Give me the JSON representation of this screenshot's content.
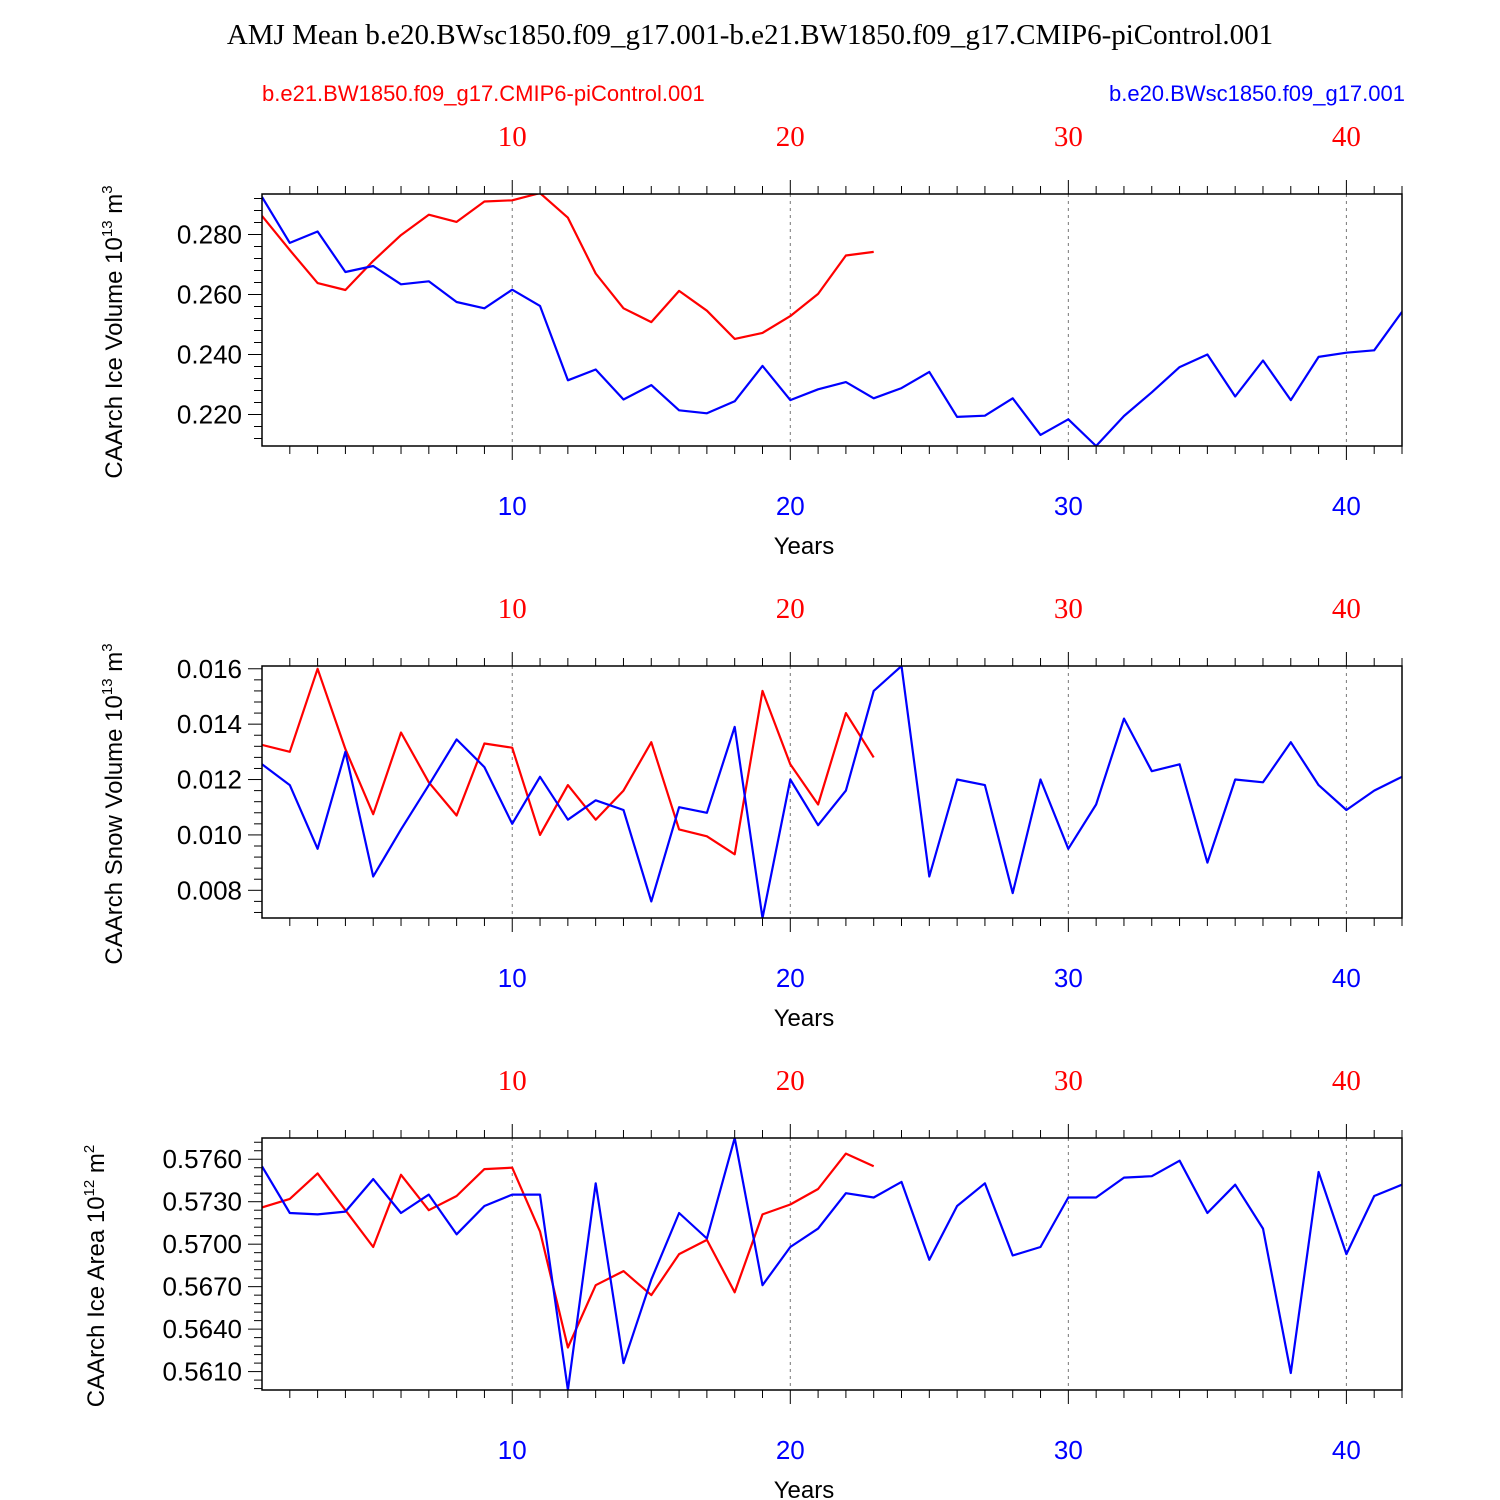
{
  "title": "AMJ Mean b.e20.BWsc1850.f09_g17.001-b.e21.BW1850.f09_g17.CMIP6-piControl.001",
  "legend": {
    "red_label": "b.e21.BW1850.f09_g17.CMIP6-piControl.001",
    "blue_label": "b.e20.BWsc1850.f09_g17.001"
  },
  "colors": {
    "red": "#ff0000",
    "blue": "#0000ff"
  },
  "chart_data": [
    {
      "type": "line",
      "ylabel": "CAArch Ice Volume 10",
      "ylabel_exp": "13",
      "ylabel_unit": " m",
      "ylabel_unit_exp": "3",
      "xlabel": "Years",
      "xlim": [
        1,
        42
      ],
      "ylim": [
        0.2095,
        0.2935
      ],
      "xticks": [
        10,
        20,
        30,
        40
      ],
      "xtick_labels": [
        "10",
        "20",
        "30",
        "40"
      ],
      "yticks": [
        0.22,
        0.24,
        0.26,
        0.28
      ],
      "ytick_labels": [
        "0.220",
        "0.240",
        "0.260",
        "0.280"
      ],
      "series": [
        {
          "name": "b.e21.BW1850.f09_g17.CMIP6-piControl.001",
          "color": "red",
          "values": [
            0.2862,
            0.2748,
            0.2638,
            0.2615,
            0.2712,
            0.2798,
            0.2866,
            0.2842,
            0.291,
            0.2914,
            0.2938,
            0.2856,
            0.267,
            0.2554,
            0.2508,
            0.2612,
            0.2546,
            0.2452,
            0.2472,
            0.2528,
            0.2602,
            0.273,
            0.2742
          ]
        },
        {
          "name": "b.e20.BWsc1850.f09_g17.001",
          "color": "blue",
          "values": [
            0.2925,
            0.2772,
            0.281,
            0.2675,
            0.2695,
            0.2634,
            0.2644,
            0.2575,
            0.2554,
            0.2616,
            0.2562,
            0.2314,
            0.235,
            0.225,
            0.2298,
            0.2214,
            0.2204,
            0.2244,
            0.2362,
            0.2248,
            0.2284,
            0.2308,
            0.2254,
            0.2288,
            0.2342,
            0.2192,
            0.2196,
            0.2254,
            0.2132,
            0.2184,
            0.2095,
            0.2195,
            0.2274,
            0.2358,
            0.24,
            0.226,
            0.238,
            0.2248,
            0.2392,
            0.2406,
            0.2414,
            0.2542
          ]
        }
      ]
    },
    {
      "type": "line",
      "ylabel": "CAArch Snow Volume 10",
      "ylabel_exp": "13",
      "ylabel_unit": " m",
      "ylabel_unit_exp": "3",
      "xlabel": "Years",
      "xlim": [
        1,
        42
      ],
      "ylim": [
        0.007,
        0.0161
      ],
      "xticks": [
        10,
        20,
        30,
        40
      ],
      "xtick_labels": [
        "10",
        "20",
        "30",
        "40"
      ],
      "yticks": [
        0.008,
        0.01,
        0.012,
        0.014,
        0.016
      ],
      "ytick_labels": [
        "0.008",
        "0.010",
        "0.012",
        "0.014",
        "0.016"
      ],
      "series": [
        {
          "name": "b.e21.BW1850.f09_g17.CMIP6-piControl.001",
          "color": "red",
          "values": [
            0.01325,
            0.013,
            0.016,
            0.0131,
            0.01075,
            0.0137,
            0.0119,
            0.0107,
            0.0133,
            0.01315,
            0.01,
            0.0118,
            0.01055,
            0.0116,
            0.01335,
            0.0102,
            0.00995,
            0.0093,
            0.0152,
            0.01255,
            0.0111,
            0.0144,
            0.0128
          ]
        },
        {
          "name": "b.e20.BWsc1850.f09_g17.001",
          "color": "blue",
          "values": [
            0.01255,
            0.0118,
            0.0095,
            0.013,
            0.0085,
            0.0102,
            0.0118,
            0.01345,
            0.01245,
            0.0104,
            0.0121,
            0.01055,
            0.01125,
            0.0109,
            0.0076,
            0.011,
            0.0108,
            0.0139,
            0.007,
            0.012,
            0.01035,
            0.0116,
            0.0152,
            0.0161,
            0.0085,
            0.012,
            0.0118,
            0.0079,
            0.012,
            0.0095,
            0.0111,
            0.0142,
            0.0123,
            0.01255,
            0.009,
            0.012,
            0.0119,
            0.01335,
            0.0118,
            0.0109,
            0.0116,
            0.0121
          ]
        }
      ]
    },
    {
      "type": "line",
      "ylabel": "CAArch Ice Area 10",
      "ylabel_exp": "12",
      "ylabel_unit": " m",
      "ylabel_unit_exp": "2",
      "xlabel": "Years",
      "xlim": [
        1,
        42
      ],
      "ylim": [
        0.5597,
        0.5775
      ],
      "xticks": [
        10,
        20,
        30,
        40
      ],
      "xtick_labels": [
        "10",
        "20",
        "30",
        "40"
      ],
      "yticks": [
        0.561,
        0.564,
        0.567,
        0.57,
        0.573,
        0.576
      ],
      "ytick_labels": [
        "0.5610",
        "0.5640",
        "0.5670",
        "0.5700",
        "0.5730",
        "0.5760"
      ],
      "series": [
        {
          "name": "b.e21.BW1850.f09_g17.CMIP6-piControl.001",
          "color": "red",
          "values": [
            0.5726,
            0.5732,
            0.575,
            0.5724,
            0.5698,
            0.5749,
            0.5724,
            0.5734,
            0.5753,
            0.5754,
            0.5709,
            0.5627,
            0.5671,
            0.5681,
            0.5664,
            0.5693,
            0.5703,
            0.5666,
            0.5721,
            0.5728,
            0.5739,
            0.5764,
            0.5755
          ]
        },
        {
          "name": "b.e20.BWsc1850.f09_g17.001",
          "color": "blue",
          "values": [
            0.5755,
            0.5722,
            0.5721,
            0.5723,
            0.5746,
            0.5722,
            0.5735,
            0.5707,
            0.5727,
            0.5735,
            0.5735,
            0.5597,
            0.5743,
            0.5616,
            0.5675,
            0.5722,
            0.5704,
            0.5775,
            0.5671,
            0.5698,
            0.5711,
            0.5736,
            0.5733,
            0.5744,
            0.5689,
            0.5727,
            0.5743,
            0.5692,
            0.5698,
            0.5733,
            0.5733,
            0.5747,
            0.5748,
            0.5759,
            0.5722,
            0.5742,
            0.5711,
            0.5609,
            0.5751,
            0.5693,
            0.5734,
            0.5742
          ]
        }
      ]
    }
  ]
}
